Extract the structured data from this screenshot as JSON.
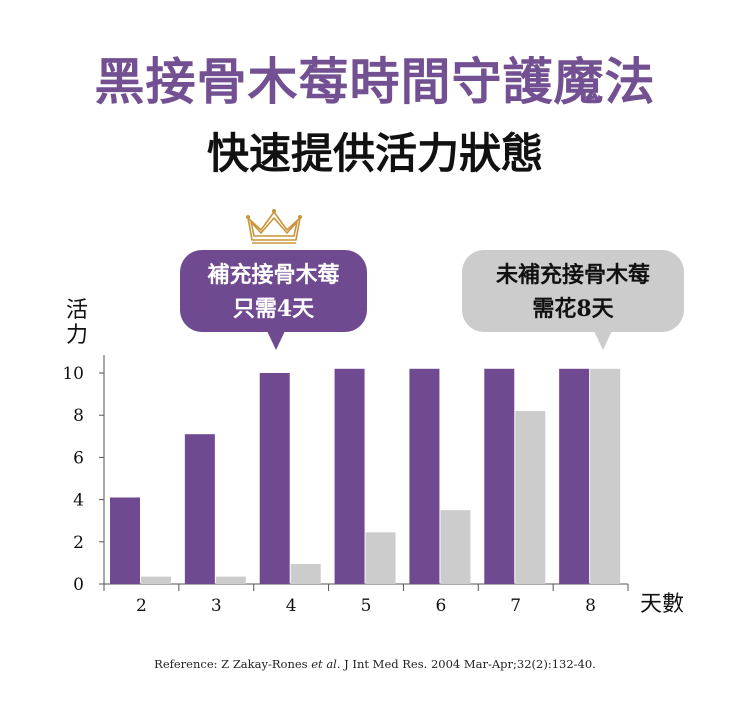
{
  "header": {
    "title": "黑接骨木莓時間守護魔法",
    "subtitle": "快速提供活力狀態"
  },
  "callouts": {
    "with": {
      "line1": "補充接骨木莓",
      "line2": "只需4天"
    },
    "without": {
      "line1": "未補充接骨木莓",
      "line2": "需花8天"
    }
  },
  "reference": {
    "prefix": "Reference: Z Zakay-Rones ",
    "italic": "et al.",
    "suffix": " J Int Med Res. 2004 Mar-Apr;32(2):132-40."
  },
  "colors": {
    "purple": "#6f4a91",
    "gray": "#cccccc",
    "title": "#735092",
    "crown": "#c8953a"
  },
  "chart_data": {
    "type": "bar",
    "ylabel": "活力",
    "xlabel": "天數",
    "categories": [
      "2",
      "3",
      "4",
      "5",
      "6",
      "7",
      "8"
    ],
    "yticks": [
      0,
      2,
      4,
      6,
      8,
      10
    ],
    "ylim": [
      0,
      10.5
    ],
    "grid": false,
    "series": [
      {
        "color": "#6f4a91",
        "values": [
          4.1,
          7.1,
          10.0,
          10.2,
          10.2,
          10.2,
          10.2
        ]
      },
      {
        "color": "#cccccc",
        "values": [
          0.35,
          0.35,
          0.95,
          2.45,
          3.5,
          8.2,
          10.2
        ]
      }
    ]
  }
}
